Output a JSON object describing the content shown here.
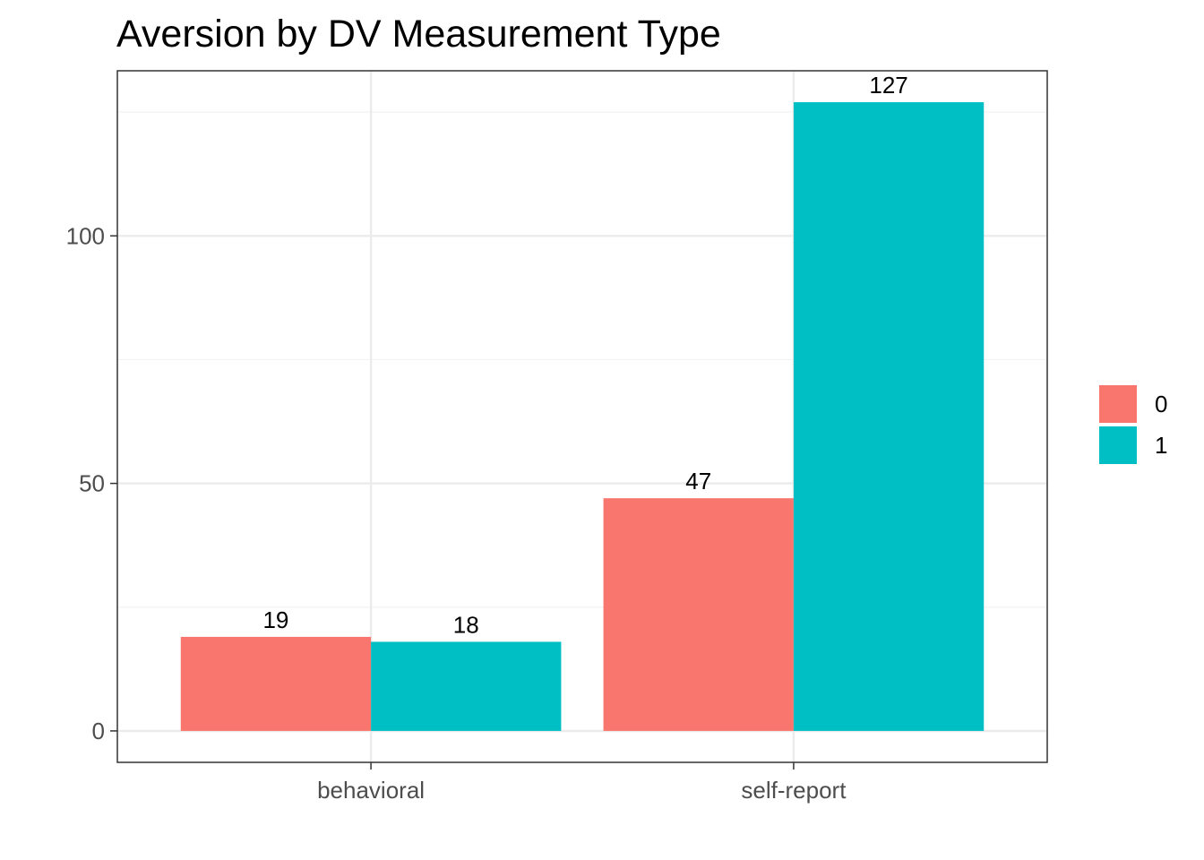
{
  "chart_data": {
    "type": "bar",
    "title": "Aversion by DV Measurement Type",
    "xlabel": "",
    "ylabel": "",
    "categories": [
      "behavioral",
      "self-report"
    ],
    "series": [
      {
        "name": "0",
        "color": "#F8766D",
        "values": [
          19,
          47
        ]
      },
      {
        "name": "1",
        "color": "#00BFC4",
        "values": [
          18,
          127
        ]
      }
    ],
    "ylim": [
      -6.35,
      133.35
    ],
    "y_ticks": [
      0,
      50,
      100
    ],
    "y_tick_labels": [
      "0",
      "50",
      "100"
    ],
    "grid": true,
    "legend_position": "right",
    "theme": "bw"
  }
}
